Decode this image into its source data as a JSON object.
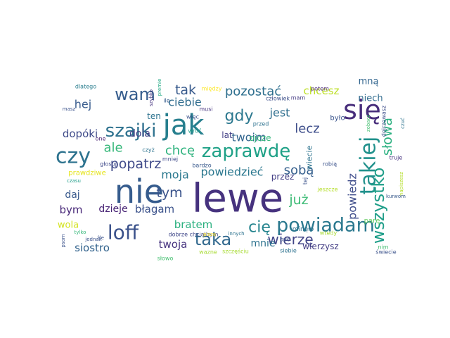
{
  "words": [
    {
      "text": "lewe",
      "color": "#46327e",
      "orient": "h"
    },
    {
      "text": "nie",
      "color": "#365c8d",
      "orient": "h"
    },
    {
      "text": "jak",
      "color": "#277f8e",
      "orient": "h"
    },
    {
      "text": "się",
      "color": "#472d7b",
      "orient": "h"
    },
    {
      "text": "szajki",
      "color": "#2d718e",
      "orient": "h"
    },
    {
      "text": "loff",
      "color": "#3b528b",
      "orient": "h"
    },
    {
      "text": "zaprawdę",
      "color": "#1fa187",
      "orient": "h"
    },
    {
      "text": "powiadam",
      "color": "#2a788e",
      "orient": "h"
    },
    {
      "text": "czy",
      "color": "#2c728e",
      "orient": "h"
    },
    {
      "text": "takiej",
      "color": "#21918c",
      "orient": "v"
    },
    {
      "text": "wszystko",
      "color": "#1f9e89",
      "orient": "v"
    },
    {
      "text": "wam",
      "color": "#365d8d",
      "orient": "h"
    },
    {
      "text": "taka",
      "color": "#31688e",
      "orient": "h"
    },
    {
      "text": "pozostać",
      "color": "#2e6f8e",
      "orient": "h"
    },
    {
      "text": "gdy",
      "color": "#2a778e",
      "orient": "h"
    },
    {
      "text": "popatrz",
      "color": "#3e4989",
      "orient": "h"
    },
    {
      "text": "tak",
      "color": "#375a8c",
      "orient": "h"
    },
    {
      "text": "chcę",
      "color": "#2db27d",
      "orient": "h"
    },
    {
      "text": "ale",
      "color": "#35b779",
      "orient": "h"
    },
    {
      "text": "cię",
      "color": "#25848e",
      "orient": "h"
    },
    {
      "text": "wierzę",
      "color": "#414487",
      "orient": "h"
    },
    {
      "text": "tym",
      "color": "#3a538b",
      "orient": "h"
    },
    {
      "text": "już",
      "color": "#3cbb75",
      "orient": "h"
    },
    {
      "text": "słowa",
      "color": "#29af7f",
      "orient": "v"
    },
    {
      "text": "sobą",
      "color": "#355f8d",
      "orient": "h"
    },
    {
      "text": "lecz",
      "color": "#3d4d8a",
      "orient": "h"
    },
    {
      "text": "jest",
      "color": "#2e6e8e",
      "orient": "h"
    },
    {
      "text": "twoim",
      "color": "#32658e",
      "orient": "h"
    },
    {
      "text": "hej",
      "color": "#375b8d",
      "orient": "h"
    },
    {
      "text": "chcesz",
      "color": "#bddf26",
      "orient": "h"
    },
    {
      "text": "ciebie",
      "color": "#2f6c8e",
      "orient": "h"
    },
    {
      "text": "moja",
      "color": "#2a788e",
      "orient": "h"
    },
    {
      "text": "powiedzieć",
      "color": "#2a778e",
      "orient": "h"
    },
    {
      "text": "bratem",
      "color": "#2ab07f",
      "orient": "h"
    },
    {
      "text": "błagam",
      "color": "#3b528b",
      "orient": "h"
    },
    {
      "text": "dzieje",
      "color": "#482475",
      "orient": "h"
    },
    {
      "text": "bym",
      "color": "#482878",
      "orient": "h"
    },
    {
      "text": "twoja",
      "color": "#46337f",
      "orient": "h"
    },
    {
      "text": "siostro",
      "color": "#33638d",
      "orient": "h"
    },
    {
      "text": "mnie",
      "color": "#2c728e",
      "orient": "h"
    },
    {
      "text": "powiedz",
      "color": "#3e4c8a",
      "orient": "v"
    },
    {
      "text": "dopóki",
      "color": "#3e4a89",
      "orient": "h"
    },
    {
      "text": "dola",
      "color": "#424086",
      "orient": "h"
    },
    {
      "text": "daj",
      "color": "#38598c",
      "orient": "h"
    },
    {
      "text": "wola",
      "color": "#d2e21b",
      "orient": "h"
    },
    {
      "text": "mną",
      "color": "#32658e",
      "orient": "h"
    },
    {
      "text": "niech",
      "color": "#2f6b8e",
      "orient": "h"
    },
    {
      "text": "lat",
      "color": "#423f85",
      "orient": "h"
    },
    {
      "text": "ojcze",
      "color": "#31b57b",
      "orient": "h"
    },
    {
      "text": "przez",
      "color": "#433e85",
      "orient": "h"
    },
    {
      "text": "ten",
      "color": "#2c728e",
      "orient": "h"
    },
    {
      "text": "wierzysz",
      "color": "#433d84",
      "orient": "h"
    },
    {
      "text": "wiecie",
      "color": "#2c738e",
      "orient": "v"
    },
    {
      "text": "prawdziwe",
      "color": "#e5e419",
      "orient": "h"
    },
    {
      "text": "dobrze chciałbym",
      "color": "#3f4788",
      "orient": "h"
    },
    {
      "text": "minęło",
      "color": "#2c718e",
      "orient": "h"
    },
    {
      "text": "parę",
      "color": "#63cb5f",
      "orient": "h"
    },
    {
      "text": "wtedy",
      "color": "#a8db34",
      "orient": "h"
    },
    {
      "text": "było",
      "color": "#3a548c",
      "orient": "h"
    },
    {
      "text": "potem",
      "color": "#482475",
      "orient": "h"
    },
    {
      "text": "dojrzewasz",
      "color": "#3d4e8a",
      "orient": "v"
    },
    {
      "text": "czuć",
      "color": "#2c738e",
      "orient": "v"
    },
    {
      "text": "zobacz",
      "color": "#44bf70",
      "orient": "v"
    },
    {
      "text": "truje",
      "color": "#46337f",
      "orient": "h"
    },
    {
      "text": "napiszesz",
      "color": "#b5de2b",
      "orient": "v"
    },
    {
      "text": "kurwom",
      "color": "#38598c",
      "orient": "h"
    },
    {
      "text": "mam",
      "color": "#443983",
      "orient": "h"
    },
    {
      "text": "człowiek",
      "color": "#3c4f8a",
      "orient": "h"
    },
    {
      "text": "między",
      "color": "#fde725",
      "orient": "h"
    },
    {
      "text": "przed",
      "color": "#2c718e",
      "orient": "h"
    },
    {
      "text": "robią",
      "color": "#3b528b",
      "orient": "h"
    },
    {
      "text": "jeszcze",
      "color": "#b5de2b",
      "orient": "h"
    },
    {
      "text": "dlatego",
      "color": "#287d8e",
      "orient": "h"
    },
    {
      "text": "masz",
      "color": "#3b528b",
      "orient": "h"
    },
    {
      "text": "ile",
      "color": "#365c8d",
      "orient": "h"
    },
    {
      "text": "szybko",
      "color": "#46337f",
      "orient": "v"
    },
    {
      "text": "premie",
      "color": "#22a884",
      "orient": "v"
    },
    {
      "text": "musi",
      "color": "#46337f",
      "orient": "h"
    },
    {
      "text": "więc",
      "color": "#3b528b",
      "orient": "h"
    },
    {
      "text": "wróć",
      "color": "#1fa088",
      "orient": "h"
    },
    {
      "text": "czyż",
      "color": "#2c728e",
      "orient": "h"
    },
    {
      "text": "one",
      "color": "#482173",
      "orient": "h"
    },
    {
      "text": "głosuj",
      "color": "#3e4989",
      "orient": "h"
    },
    {
      "text": "mniej",
      "color": "#3e4989",
      "orient": "h"
    },
    {
      "text": "bardzo",
      "color": "#38598c",
      "orient": "h"
    },
    {
      "text": "czasu",
      "color": "#1f9e89",
      "orient": "h"
    },
    {
      "text": "źle",
      "color": "#3b528b",
      "orient": "h"
    },
    {
      "text": "jednak",
      "color": "#3b528b",
      "orient": "h"
    },
    {
      "text": "tylko",
      "color": "#35b779",
      "orient": "h"
    },
    {
      "text": "psom",
      "color": "#3b528b",
      "orient": "v"
    },
    {
      "text": "słowo",
      "color": "#44bf70",
      "orient": "h"
    },
    {
      "text": "wazne",
      "color": "#a8db34",
      "orient": "h"
    },
    {
      "text": "szczęściu",
      "color": "#a8db34",
      "orient": "h"
    },
    {
      "text": "piszę",
      "color": "#fde725",
      "orient": "h"
    },
    {
      "text": "innych",
      "color": "#2c728e",
      "orient": "h"
    },
    {
      "text": "siebie",
      "color": "#2c718e",
      "orient": "h"
    },
    {
      "text": "być",
      "color": "#3b528b",
      "orient": "h"
    },
    {
      "text": "tej",
      "color": "#3b528b",
      "orient": "v"
    },
    {
      "text": "nim",
      "color": "#44bf70",
      "orient": "h"
    },
    {
      "text": "świecie",
      "color": "#3b528b",
      "orient": "h"
    }
  ]
}
